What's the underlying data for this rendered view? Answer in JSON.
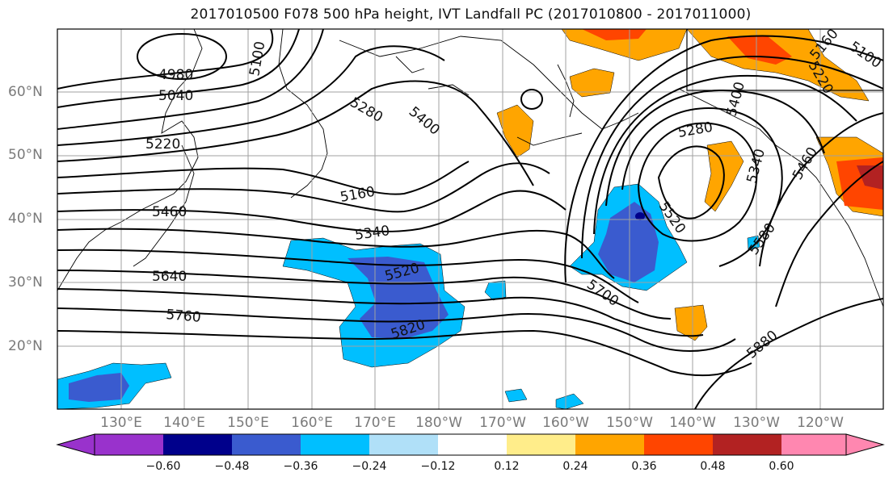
{
  "title": "2017010500 F078 500 hPa height, IVT Landfall PC (2017010800 - 2017011000)",
  "lat_labels": [
    "60°N",
    "50°N",
    "40°N",
    "30°N",
    "20°N"
  ],
  "lon_labels": [
    "130°E",
    "140°E",
    "150°E",
    "160°E",
    "170°E",
    "180°W",
    "170°W",
    "160°W",
    "150°W",
    "140°W",
    "130°W",
    "120°W"
  ],
  "contour_labels": [
    "4980",
    "5040",
    "5100",
    "5220",
    "5280",
    "5400",
    "5160",
    "5340",
    "5460",
    "5520",
    "5640",
    "5760",
    "5820",
    "5700",
    "5880",
    "5580",
    "5280",
    "5340",
    "5460",
    "5400",
    "5220",
    "5160",
    "5100",
    "5520"
  ],
  "colorbar": {
    "ticks": [
      "−0.60",
      "−0.48",
      "−0.36",
      "−0.24",
      "−0.12",
      "0.12",
      "0.24",
      "0.36",
      "0.48",
      "0.60"
    ],
    "colors": [
      "#9932cc",
      "#00008b",
      "#3a5bcf",
      "#00bfff",
      "#b0e0f8",
      "#ffffff",
      "#ffed8a",
      "#ffa500",
      "#ff4500",
      "#b22222",
      "#ff87b0"
    ]
  },
  "colors": {
    "contour": "#000000",
    "grid": "#a0a0a0",
    "coast": "#000000",
    "neg_light": "#00bfff",
    "neg_dark": "#3a5bcf",
    "neg_darkest": "#00008b",
    "pos_light": "#ffa500",
    "pos_mid": "#ff4500",
    "pos_dark": "#b22222"
  }
}
